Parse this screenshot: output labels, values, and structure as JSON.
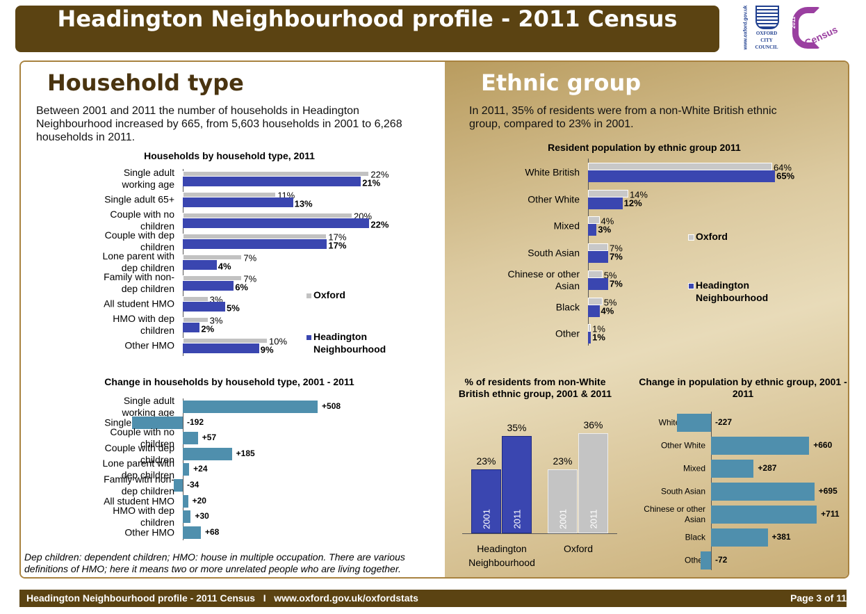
{
  "header": {
    "title": "Headington Neighbourhood profile - 2011 Census",
    "url": "www.oxford.gov.uk",
    "council": [
      "OXFORD",
      "CITY",
      "COUNCIL"
    ],
    "census_year": "2011",
    "census": "Census"
  },
  "household": {
    "heading": "Household type",
    "intro": "Between 2001 and 2011 the number of households in Headington Neighbourhood increased by 665, from 5,603 households in 2001 to 6,268 households in 2011."
  },
  "ethnic": {
    "heading": "Ethnic group",
    "intro": "In 2011, 35% of residents were from a non-White British ethnic group, compared to 23% in 2001."
  },
  "chart_data": [
    {
      "type": "bar",
      "horizontal": true,
      "title": "Households by household type, 2011",
      "categories": [
        "Single adult working age",
        "Single adult 65+",
        "Couple with no children",
        "Couple with dep children",
        "Lone parent with dep children",
        "Family with non-dep children",
        "All student HMO",
        "HMO with dep children",
        "Other HMO"
      ],
      "series": [
        {
          "name": "Oxford",
          "color": "#c2c2c2",
          "values": [
            22,
            11,
            20,
            17,
            7,
            7,
            3,
            3,
            10
          ],
          "value_labels": [
            "22%",
            "11%",
            "20%",
            "17%",
            "7%",
            "7%",
            "3%",
            "3%",
            "10%"
          ]
        },
        {
          "name": "Headington Neighbourhood",
          "color": "#3a46b0",
          "values": [
            21,
            13,
            22,
            17,
            4,
            6,
            5,
            2,
            9
          ],
          "value_labels": [
            "21%",
            "13%",
            "22%",
            "17%",
            "4%",
            "6%",
            "5%",
            "2%",
            "9%"
          ]
        }
      ]
    },
    {
      "type": "bar",
      "horizontal": true,
      "title": "Change in households by household type, 2001 - 2011",
      "categories": [
        "Single adult working age",
        "Single adult 65+",
        "Couple with no children",
        "Couple with dep children",
        "Lone parent with dep children",
        "Family with non-dep children",
        "All student HMO",
        "HMO with dep children",
        "Other HMO"
      ],
      "color": "#4f8fad",
      "values": [
        508,
        -192,
        57,
        185,
        24,
        -34,
        20,
        30,
        68
      ],
      "value_labels": [
        "+508",
        "-192",
        "+57",
        "+185",
        "+24",
        "-34",
        "+20",
        "+30",
        "+68"
      ]
    },
    {
      "type": "bar",
      "horizontal": true,
      "title": "Resident population by ethnic group 2011",
      "categories": [
        "White British",
        "Other White",
        "Mixed",
        "South Asian",
        "Chinese or other Asian",
        "Black",
        "Other"
      ],
      "series": [
        {
          "name": "Oxford",
          "color": "#c8c8c8",
          "values": [
            64,
            14,
            4,
            7,
            5,
            5,
            1
          ],
          "value_labels": [
            "64%",
            "14%",
            "4%",
            "7%",
            "5%",
            "5%",
            "1%"
          ]
        },
        {
          "name": "Headington Neighbourhood",
          "color": "#3a46b0",
          "values": [
            65,
            12,
            3,
            7,
            7,
            4,
            1
          ],
          "value_labels": [
            "65%",
            "12%",
            "3%",
            "7%",
            "7%",
            "4%",
            "1%"
          ]
        }
      ]
    },
    {
      "type": "bar",
      "horizontal": false,
      "title": "% of residents from non-White British ethnic group, 2001 & 2011",
      "categories": [
        "Headington Neighbourhood",
        "Oxford"
      ],
      "category_colors": [
        "#3a46b0",
        "#c4c4c4"
      ],
      "series": [
        {
          "name": "2001",
          "values": [
            23,
            23
          ],
          "value_labels": [
            "23%",
            "23%"
          ]
        },
        {
          "name": "2011",
          "values": [
            35,
            36
          ],
          "value_labels": [
            "35%",
            "36%"
          ]
        }
      ]
    },
    {
      "type": "bar",
      "horizontal": true,
      "title": "Change in population by ethnic group, 2001 - 2011",
      "categories": [
        "White British",
        "Other White",
        "Mixed",
        "South Asian",
        "Chinese or other Asian",
        "Black",
        "Other"
      ],
      "color": "#4f8fad",
      "values": [
        -227,
        660,
        287,
        695,
        711,
        381,
        -72
      ],
      "value_labels": [
        "-227",
        "+660",
        "+287",
        "+695",
        "+711",
        "+381",
        "-72"
      ]
    }
  ],
  "footnote": "Dep children: dependent children; HMO: house in multiple occupation.  There are various definitions of HMO; here it means two or more unrelated people who are living together.",
  "footer": {
    "text": "Headington Neighbourhood profile - 2011 Census   I   www.oxford.gov.uk/oxfordstats",
    "page": "Page 3 of 11"
  }
}
